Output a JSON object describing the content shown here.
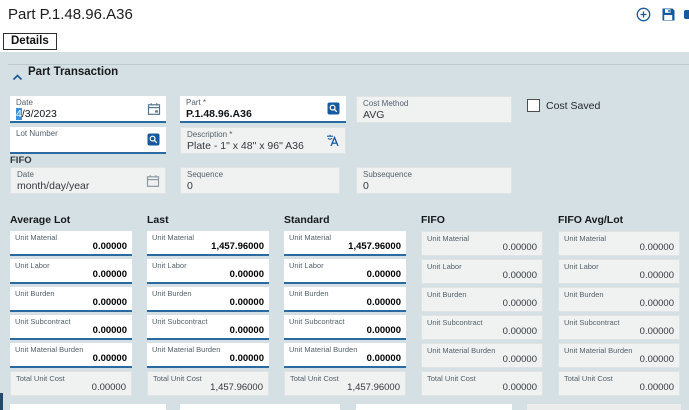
{
  "header": {
    "title": "Part P.1.48.96.A36",
    "icons": {
      "new": "circle-plus-icon",
      "save": "save-icon",
      "edge": "clipped-icon"
    }
  },
  "tabs": {
    "details": "Details"
  },
  "transaction": {
    "title": "Part Transaction",
    "date": {
      "label": "Date",
      "selected": "4",
      "rest": "/3/2023",
      "icon": "calendar-icon"
    },
    "part": {
      "label": "Part *",
      "value": "P.1.48.96.A36",
      "icon": "peek-icon"
    },
    "cost_method": {
      "label": "Cost Method",
      "value": "AVG"
    },
    "cost_saved": {
      "label": "Cost Saved",
      "checked": false
    },
    "lot_number": {
      "label": "Lot Number",
      "value": "",
      "icon": "peek-icon"
    },
    "description": {
      "label": "Description *",
      "value": "Plate - 1\" x 48\" x 96\" A36",
      "icon": "translate-icon"
    },
    "fifo": {
      "group_label": "FIFO",
      "date": {
        "label": "Date",
        "placeholder": "month/day/year",
        "icon": "calendar-icon"
      },
      "sequence": {
        "label": "Sequence",
        "value": "0"
      },
      "subsequence": {
        "label": "Subsequence",
        "value": "0"
      }
    }
  },
  "costs": {
    "field_labels": [
      "Unit Material",
      "Unit Labor",
      "Unit Burden",
      "Unit Subcontract",
      "Unit Material Burden",
      "Total Unit Cost"
    ],
    "columns": [
      {
        "title": "Average Lot",
        "editable": true,
        "values": [
          "0.00000",
          "0.00000",
          "0.00000",
          "0.00000",
          "0.00000",
          "0.00000"
        ]
      },
      {
        "title": "Last",
        "editable": true,
        "values": [
          "1,457.96000",
          "0.00000",
          "0.00000",
          "0.00000",
          "0.00000",
          "1,457.96000"
        ]
      },
      {
        "title": "Standard",
        "editable": true,
        "values": [
          "1,457.96000",
          "0.00000",
          "0.00000",
          "0.00000",
          "0.00000",
          "1,457.96000"
        ]
      },
      {
        "title": "FIFO",
        "editable": false,
        "values": [
          "0.00000",
          "0.00000",
          "0.00000",
          "0.00000",
          "0.00000",
          "0.00000"
        ]
      },
      {
        "title": "FIFO Avg/Lot",
        "editable": false,
        "values": [
          "0.00000",
          "0.00000",
          "0.00000",
          "0.00000",
          "0.00000",
          "0.00000"
        ]
      }
    ]
  },
  "colors": {
    "accent_blue": "#15599e",
    "field_underline": "#2b6a9f",
    "content_bg": "#d5e0e4",
    "readonly_bg": "#f0f1f1",
    "selection_bg": "#3d8fd9"
  }
}
